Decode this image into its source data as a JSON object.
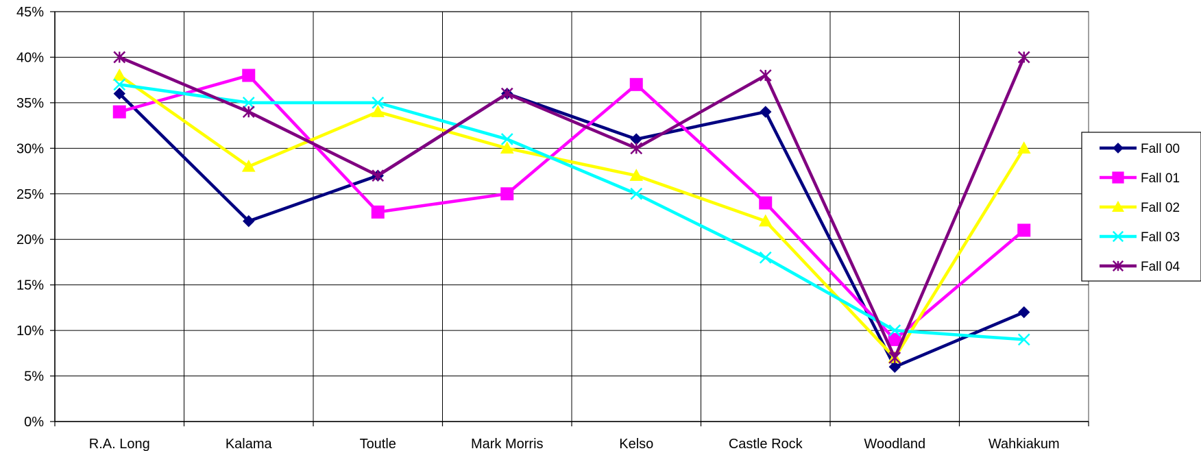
{
  "chart_data": {
    "type": "line",
    "title": "",
    "xlabel": "",
    "ylabel": "",
    "categories": [
      "R.A. Long",
      "Kalama",
      "Toutle",
      "Mark Morris",
      "Kelso",
      "Castle Rock",
      "Woodland",
      "Wahkiakum"
    ],
    "ylim": [
      0,
      45
    ],
    "ytick_values": [
      0,
      5,
      10,
      15,
      20,
      25,
      30,
      35,
      40,
      45
    ],
    "ytick_labels": [
      "0%",
      "5%",
      "10%",
      "15%",
      "20%",
      "25%",
      "30%",
      "35%",
      "40%",
      "45%"
    ],
    "grid": true,
    "legend_position": "right",
    "series": [
      {
        "name": "Fall 00",
        "color": "#000080",
        "marker": "diamond",
        "values": [
          36,
          22,
          27,
          36,
          31,
          34,
          6,
          12
        ]
      },
      {
        "name": "Fall 01",
        "color": "#FF00FF",
        "marker": "square",
        "values": [
          34,
          38,
          23,
          25,
          37,
          24,
          9,
          21
        ]
      },
      {
        "name": "Fall 02",
        "color": "#FFFF00",
        "marker": "triangle",
        "values": [
          38,
          28,
          34,
          30,
          27,
          22,
          7,
          30
        ]
      },
      {
        "name": "Fall 03",
        "color": "#00FFFF",
        "marker": "x",
        "values": [
          37,
          35,
          35,
          31,
          25,
          18,
          10,
          9
        ]
      },
      {
        "name": "Fall 04",
        "color": "#800080",
        "marker": "star",
        "values": [
          40,
          34,
          27,
          36,
          30,
          38,
          7,
          40
        ]
      }
    ]
  }
}
